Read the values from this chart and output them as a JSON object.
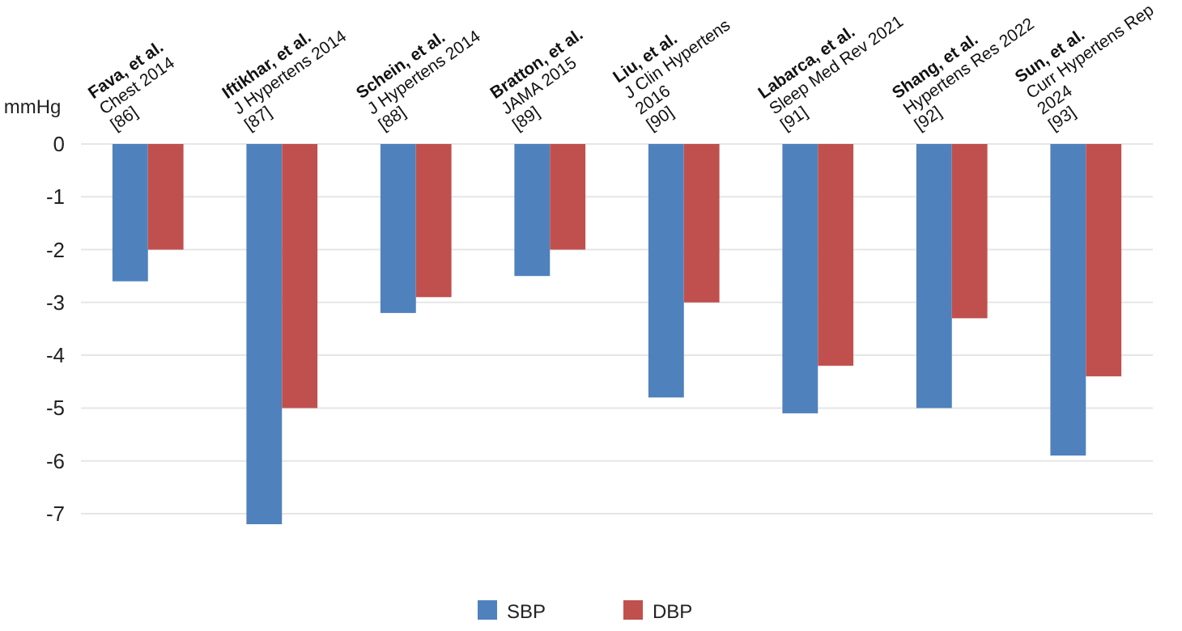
{
  "chart_data": {
    "type": "bar",
    "ylabel": "mmHg",
    "categories": [
      "Fava, et al.\nChest 2014\n[86]",
      "Iftikhar, et al.\nJ Hypertens 2014\n[87]",
      "Schein, et al.\nJ Hypertens 2014\n[88]",
      "Bratton, et al.\nJAMA 2015\n[89]",
      "Liu, et al.\nJ Clin Hypertens\n2016\n[90]",
      "Labarca, et al.\nSleep Med Rev 2021\n[91]",
      "Shang, et al.\nHypertens Res 2022\n[92]",
      "Sun, et al.\nCurr Hypertens Rep\n2024\n[93]"
    ],
    "series": [
      {
        "name": "SBP",
        "color": "#4f81bd",
        "values": [
          -2.6,
          -7.2,
          -3.2,
          -2.5,
          -4.8,
          -5.1,
          -5.0,
          -5.9
        ]
      },
      {
        "name": "DBP",
        "color": "#c0504d",
        "values": [
          -2.0,
          -5.0,
          -2.9,
          -2.0,
          -3.0,
          -4.2,
          -3.3,
          -4.4
        ]
      }
    ],
    "ylim": [
      -7.2,
      0
    ],
    "yticks": [
      0,
      -1,
      -2,
      -3,
      -4,
      -5,
      -6,
      -7
    ],
    "grid": "y",
    "legend": "bottom"
  }
}
